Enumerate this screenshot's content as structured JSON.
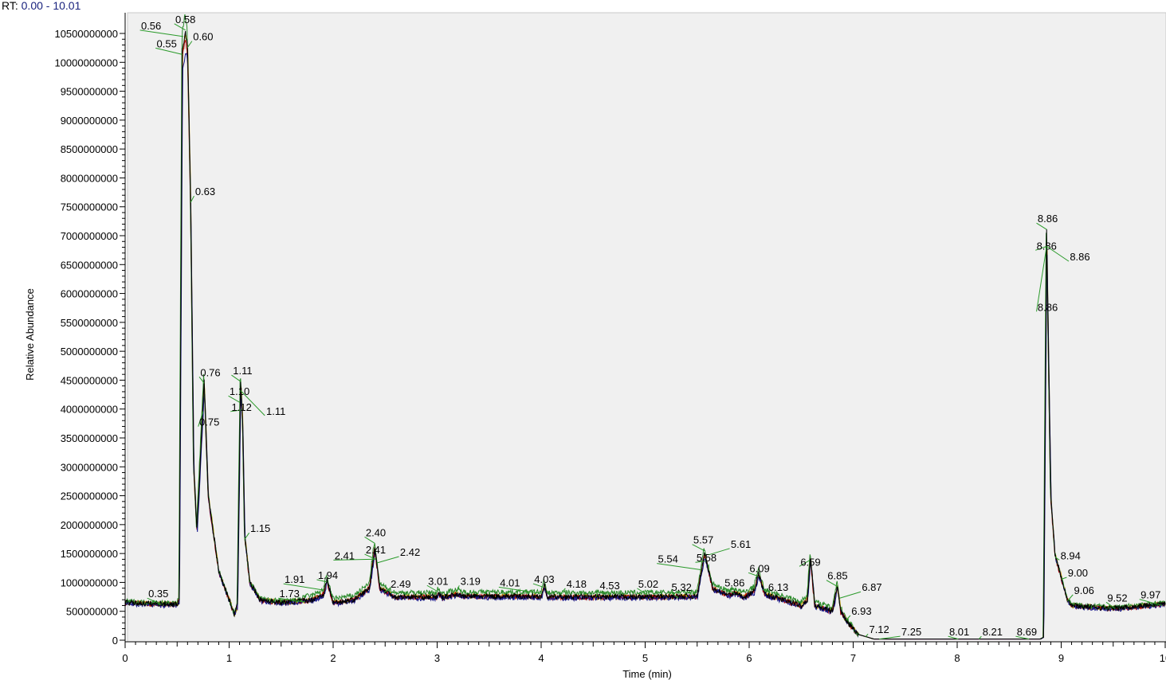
{
  "header": {
    "rt_label": "RT:",
    "rt_range": "0.00 - 10.01"
  },
  "chart_data": {
    "type": "line",
    "xlabel": "Time (min)",
    "ylabel": "Relative Abundance",
    "xlim": [
      0,
      10
    ],
    "ylim": [
      0,
      10500000000
    ],
    "x_ticks": [
      "0",
      "1",
      "2",
      "3",
      "4",
      "5",
      "6",
      "7",
      "8",
      "9",
      "10"
    ],
    "y_ticks": [
      0,
      500000000,
      1000000000,
      1500000000,
      2000000000,
      2500000000,
      3000000000,
      3500000000,
      4000000000,
      4500000000,
      5000000000,
      5500000000,
      6000000000,
      6500000000,
      7000000000,
      7500000000,
      8000000000,
      8500000000,
      9000000000,
      9500000000,
      10000000000,
      10500000000
    ],
    "grid": false,
    "background": "#f0f0f0",
    "series_colors": [
      "#000000",
      "#1a1a8c",
      "#b00000",
      "#2a8a2a",
      "#c8a000"
    ],
    "profile": [
      [
        0,
        650000000
      ],
      [
        0.5,
        620000000
      ],
      [
        0.52,
        700000000
      ],
      [
        0.55,
        10200000000
      ],
      [
        0.58,
        10500000000
      ],
      [
        0.6,
        10300000000
      ],
      [
        0.63,
        7600000000
      ],
      [
        0.66,
        3000000000
      ],
      [
        0.69,
        1900000000
      ],
      [
        0.72,
        3000000000
      ],
      [
        0.76,
        4500000000
      ],
      [
        0.8,
        2500000000
      ],
      [
        0.9,
        1200000000
      ],
      [
        1.0,
        700000000
      ],
      [
        1.05,
        450000000
      ],
      [
        1.08,
        600000000
      ],
      [
        1.11,
        4500000000
      ],
      [
        1.13,
        3800000000
      ],
      [
        1.15,
        1800000000
      ],
      [
        1.2,
        1000000000
      ],
      [
        1.3,
        700000000
      ],
      [
        1.5,
        650000000
      ],
      [
        1.8,
        700000000
      ],
      [
        1.91,
        800000000
      ],
      [
        1.94,
        1050000000
      ],
      [
        2.0,
        650000000
      ],
      [
        2.2,
        700000000
      ],
      [
        2.35,
        900000000
      ],
      [
        2.4,
        1600000000
      ],
      [
        2.45,
        900000000
      ],
      [
        2.6,
        750000000
      ],
      [
        3.0,
        750000000
      ],
      [
        3.01,
        820000000
      ],
      [
        3.05,
        740000000
      ],
      [
        3.19,
        800000000
      ],
      [
        3.25,
        760000000
      ],
      [
        4.0,
        760000000
      ],
      [
        4.03,
        950000000
      ],
      [
        4.06,
        750000000
      ],
      [
        5.0,
        750000000
      ],
      [
        5.5,
        760000000
      ],
      [
        5.57,
        1500000000
      ],
      [
        5.65,
        900000000
      ],
      [
        5.8,
        780000000
      ],
      [
        5.86,
        820000000
      ],
      [
        5.95,
        750000000
      ],
      [
        6.05,
        850000000
      ],
      [
        6.09,
        1150000000
      ],
      [
        6.15,
        800000000
      ],
      [
        6.5,
        600000000
      ],
      [
        6.56,
        700000000
      ],
      [
        6.59,
        1450000000
      ],
      [
        6.63,
        600000000
      ],
      [
        6.8,
        500000000
      ],
      [
        6.85,
        950000000
      ],
      [
        6.88,
        500000000
      ],
      [
        6.95,
        300000000
      ],
      [
        7.05,
        100000000
      ],
      [
        7.2,
        20000000
      ],
      [
        8.8,
        20000000
      ],
      [
        8.83,
        50000000
      ],
      [
        8.86,
        7100000000
      ],
      [
        8.9,
        2500000000
      ],
      [
        8.94,
        1500000000
      ],
      [
        9.0,
        1100000000
      ],
      [
        9.06,
        700000000
      ],
      [
        9.1,
        600000000
      ],
      [
        9.5,
        550000000
      ],
      [
        10,
        630000000
      ]
    ],
    "annotations": [
      {
        "text": "0.56",
        "x": 0.25,
        "y": 10640000000
      },
      {
        "text": "0.58",
        "x": 0.58,
        "y": 10750000000
      },
      {
        "text": "0.55",
        "x": 0.4,
        "y": 10330000000
      },
      {
        "text": "0.60",
        "x": 0.75,
        "y": 10450000000
      },
      {
        "text": "0.63",
        "x": 0.77,
        "y": 7770000000
      },
      {
        "text": "0.76",
        "x": 0.82,
        "y": 4640000000
      },
      {
        "text": "0.75",
        "x": 0.81,
        "y": 3780000000
      },
      {
        "text": "1.11",
        "x": 1.13,
        "y": 4670000000
      },
      {
        "text": "1.10",
        "x": 1.1,
        "y": 4310000000
      },
      {
        "text": "1.12",
        "x": 1.12,
        "y": 4040000000
      },
      {
        "text": "1.11",
        "x": 1.45,
        "y": 3970000000
      },
      {
        "text": "1.15",
        "x": 1.3,
        "y": 1940000000
      },
      {
        "text": "0.35",
        "x": 0.32,
        "y": 810000000
      },
      {
        "text": "1.73",
        "x": 1.58,
        "y": 810000000
      },
      {
        "text": "1.91",
        "x": 1.63,
        "y": 1060000000
      },
      {
        "text": "1.94",
        "x": 1.95,
        "y": 1130000000
      },
      {
        "text": "2.41",
        "x": 2.11,
        "y": 1470000000
      },
      {
        "text": "2.40",
        "x": 2.41,
        "y": 1870000000
      },
      {
        "text": "2.41",
        "x": 2.41,
        "y": 1570000000
      },
      {
        "text": "2.42",
        "x": 2.74,
        "y": 1530000000
      },
      {
        "text": "2.49",
        "x": 2.65,
        "y": 980000000
      },
      {
        "text": "3.01",
        "x": 3.01,
        "y": 1030000000
      },
      {
        "text": "3.19",
        "x": 3.32,
        "y": 1030000000
      },
      {
        "text": "4.01",
        "x": 3.7,
        "y": 1000000000
      },
      {
        "text": "4.03",
        "x": 4.03,
        "y": 1060000000
      },
      {
        "text": "4.18",
        "x": 4.34,
        "y": 980000000
      },
      {
        "text": "4.53",
        "x": 4.66,
        "y": 950000000
      },
      {
        "text": "5.02",
        "x": 5.03,
        "y": 980000000
      },
      {
        "text": "5.32",
        "x": 5.35,
        "y": 920000000
      },
      {
        "text": "5.54",
        "x": 5.22,
        "y": 1410000000
      },
      {
        "text": "5.57",
        "x": 5.56,
        "y": 1740000000
      },
      {
        "text": "5.58",
        "x": 5.59,
        "y": 1430000000
      },
      {
        "text": "5.61",
        "x": 5.92,
        "y": 1670000000
      },
      {
        "text": "5.86",
        "x": 5.86,
        "y": 1000000000
      },
      {
        "text": "6.09",
        "x": 6.1,
        "y": 1250000000
      },
      {
        "text": "6.13",
        "x": 6.28,
        "y": 920000000
      },
      {
        "text": "6.59",
        "x": 6.59,
        "y": 1360000000
      },
      {
        "text": "6.85",
        "x": 6.85,
        "y": 1120000000
      },
      {
        "text": "6.87",
        "x": 7.18,
        "y": 920000000
      },
      {
        "text": "6.93",
        "x": 7.08,
        "y": 510000000
      },
      {
        "text": "7.12",
        "x": 7.25,
        "y": 190000000
      },
      {
        "text": "7.25",
        "x": 7.56,
        "y": 150000000
      },
      {
        "text": "8.01",
        "x": 8.02,
        "y": 150000000
      },
      {
        "text": "8.21",
        "x": 8.34,
        "y": 150000000
      },
      {
        "text": "8.69",
        "x": 8.67,
        "y": 150000000
      },
      {
        "text": "8.86",
        "x": 8.87,
        "y": 7300000000
      },
      {
        "text": "8.86",
        "x": 8.86,
        "y": 6830000000
      },
      {
        "text": "8.86",
        "x": 9.18,
        "y": 6640000000
      },
      {
        "text": "8.86",
        "x": 8.87,
        "y": 5770000000
      },
      {
        "text": "8.94",
        "x": 9.09,
        "y": 1470000000
      },
      {
        "text": "9.00",
        "x": 9.16,
        "y": 1170000000
      },
      {
        "text": "9.06",
        "x": 9.22,
        "y": 870000000
      },
      {
        "text": "9.52",
        "x": 9.54,
        "y": 740000000
      },
      {
        "text": "9.97",
        "x": 9.86,
        "y": 790000000
      }
    ]
  }
}
